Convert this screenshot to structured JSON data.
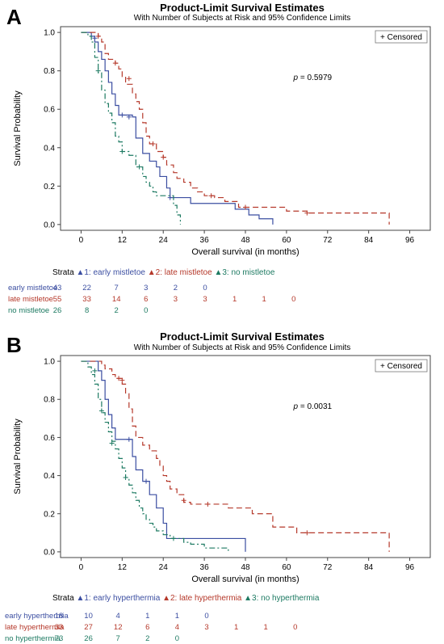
{
  "colors": {
    "series1": "#3b4ea1",
    "series2": "#b5382a",
    "series3": "#1d7a62"
  },
  "chart_data": [
    {
      "panel_label": "A",
      "type": "line",
      "title": "Product-Limit Survival Estimates",
      "subtitle": "With Number of Subjects at Risk and 95% Confidence Limits",
      "xlabel": "Overall survival (in months)",
      "ylabel": "Survival Probability",
      "xlim": [
        -6,
        102
      ],
      "ylim": [
        -0.03,
        1.03
      ],
      "xticks": [
        "0",
        "12",
        "24",
        "36",
        "48",
        "60",
        "72",
        "84",
        "96"
      ],
      "yticks": [
        "0.0",
        "0.2",
        "0.4",
        "0.6",
        "0.8",
        "1.0"
      ],
      "legend_censored": "+ Censored",
      "annotation_p_label": "p",
      "annotation_p_value": "= 0.5979",
      "strata_label": "Strata",
      "legend": [
        "1: early mistletoe",
        "2: late mistletoe",
        "3: no mistletoe"
      ],
      "series": [
        {
          "name": "early mistletoe",
          "steps": [
            [
              0,
              1.0
            ],
            [
              3,
              0.98
            ],
            [
              4,
              0.95
            ],
            [
              5,
              0.9
            ],
            [
              6,
              0.86
            ],
            [
              7,
              0.8
            ],
            [
              8,
              0.74
            ],
            [
              9,
              0.68
            ],
            [
              10,
              0.62
            ],
            [
              11,
              0.57
            ],
            [
              15,
              0.56
            ],
            [
              16,
              0.45
            ],
            [
              18,
              0.37
            ],
            [
              20,
              0.33
            ],
            [
              22,
              0.3
            ],
            [
              23,
              0.25
            ],
            [
              25,
              0.19
            ],
            [
              26,
              0.14
            ],
            [
              32,
              0.11
            ],
            [
              45,
              0.08
            ],
            [
              49,
              0.05
            ],
            [
              52,
              0.03
            ],
            [
              56,
              0.0
            ]
          ],
          "censored": [
            [
              4,
              0.97
            ],
            [
              12,
              0.57
            ],
            [
              14,
              0.56
            ],
            [
              26,
              0.14
            ]
          ],
          "at_risk": [
            "43",
            "22",
            "7",
            "3",
            "2",
            "0"
          ]
        },
        {
          "name": "late mistletoe",
          "steps": [
            [
              0,
              1.0
            ],
            [
              5,
              0.98
            ],
            [
              6,
              0.95
            ],
            [
              7,
              0.89
            ],
            [
              8,
              0.86
            ],
            [
              10,
              0.84
            ],
            [
              11,
              0.81
            ],
            [
              12,
              0.77
            ],
            [
              13,
              0.73
            ],
            [
              15,
              0.68
            ],
            [
              16,
              0.64
            ],
            [
              17,
              0.6
            ],
            [
              18,
              0.53
            ],
            [
              19,
              0.46
            ],
            [
              20,
              0.42
            ],
            [
              22,
              0.38
            ],
            [
              24,
              0.35
            ],
            [
              25,
              0.31
            ],
            [
              27,
              0.27
            ],
            [
              28,
              0.24
            ],
            [
              30,
              0.22
            ],
            [
              32,
              0.19
            ],
            [
              34,
              0.17
            ],
            [
              36,
              0.15
            ],
            [
              39,
              0.14
            ],
            [
              42,
              0.12
            ],
            [
              46,
              0.09
            ],
            [
              60,
              0.07
            ],
            [
              66,
              0.06
            ],
            [
              90,
              0.0
            ]
          ],
          "censored": [
            [
              5,
              0.98
            ],
            [
              10,
              0.84
            ],
            [
              14,
              0.76
            ],
            [
              21,
              0.42
            ],
            [
              24,
              0.35
            ],
            [
              38,
              0.15
            ],
            [
              48,
              0.09
            ],
            [
              66,
              0.06
            ]
          ],
          "at_risk": [
            "55",
            "33",
            "14",
            "6",
            "3",
            "3",
            "1",
            "1",
            "0"
          ]
        },
        {
          "name": "no mistletoe",
          "steps": [
            [
              0,
              1.0
            ],
            [
              2,
              0.98
            ],
            [
              3,
              0.95
            ],
            [
              4,
              0.87
            ],
            [
              5,
              0.79
            ],
            [
              6,
              0.7
            ],
            [
              7,
              0.63
            ],
            [
              8,
              0.58
            ],
            [
              9,
              0.53
            ],
            [
              10,
              0.46
            ],
            [
              11,
              0.43
            ],
            [
              12,
              0.38
            ],
            [
              14,
              0.36
            ],
            [
              16,
              0.3
            ],
            [
              18,
              0.25
            ],
            [
              19,
              0.22
            ],
            [
              20,
              0.2
            ],
            [
              21,
              0.17
            ],
            [
              22,
              0.15
            ],
            [
              27,
              0.1
            ],
            [
              28,
              0.05
            ],
            [
              29,
              0.0
            ]
          ],
          "censored": [
            [
              5,
              0.8
            ],
            [
              12,
              0.38
            ],
            [
              17,
              0.3
            ]
          ],
          "at_risk": [
            "26",
            "8",
            "2",
            "0"
          ]
        }
      ]
    },
    {
      "panel_label": "B",
      "type": "line",
      "title": "Product-Limit Survival Estimates",
      "subtitle": "With Number of Subjects at Risk and 95% Confidence Limits",
      "xlabel": "Overall survival (in months)",
      "ylabel": "Survival Probability",
      "xlim": [
        -6,
        102
      ],
      "ylim": [
        -0.03,
        1.03
      ],
      "xticks": [
        "0",
        "12",
        "24",
        "36",
        "48",
        "60",
        "72",
        "84",
        "96"
      ],
      "yticks": [
        "0.0",
        "0.2",
        "0.4",
        "0.6",
        "0.8",
        "1.0"
      ],
      "legend_censored": "+ Censored",
      "annotation_p_label": "p",
      "annotation_p_value": "= 0.0031",
      "strata_label": "Strata",
      "legend": [
        "1: early hyperthermia",
        "2: late hyperthermia",
        "3: no hyperthermia"
      ],
      "series": [
        {
          "name": "early hyperthermia",
          "steps": [
            [
              0,
              1.0
            ],
            [
              5,
              0.95
            ],
            [
              6,
              0.9
            ],
            [
              7,
              0.8
            ],
            [
              8,
              0.72
            ],
            [
              9,
              0.65
            ],
            [
              10,
              0.59
            ],
            [
              15,
              0.5
            ],
            [
              16,
              0.43
            ],
            [
              18,
              0.37
            ],
            [
              20,
              0.3
            ],
            [
              22,
              0.23
            ],
            [
              24,
              0.15
            ],
            [
              25,
              0.07
            ],
            [
              48,
              0.0
            ]
          ],
          "censored": [
            [
              14,
              0.59
            ],
            [
              19,
              0.37
            ]
          ],
          "at_risk": [
            "18",
            "10",
            "4",
            "1",
            "1",
            "0"
          ]
        },
        {
          "name": "late hyperthermia",
          "steps": [
            [
              0,
              1.0
            ],
            [
              6,
              0.98
            ],
            [
              7,
              0.96
            ],
            [
              9,
              0.93
            ],
            [
              10,
              0.91
            ],
            [
              12,
              0.88
            ],
            [
              13,
              0.83
            ],
            [
              14,
              0.75
            ],
            [
              15,
              0.66
            ],
            [
              16,
              0.6
            ],
            [
              18,
              0.56
            ],
            [
              20,
              0.53
            ],
            [
              22,
              0.49
            ],
            [
              23,
              0.45
            ],
            [
              24,
              0.4
            ],
            [
              25,
              0.37
            ],
            [
              26,
              0.33
            ],
            [
              28,
              0.3
            ],
            [
              30,
              0.26
            ],
            [
              32,
              0.25
            ],
            [
              36,
              0.25
            ],
            [
              43,
              0.23
            ],
            [
              50,
              0.2
            ],
            [
              56,
              0.13
            ],
            [
              63,
              0.1
            ],
            [
              90,
              0.0
            ]
          ],
          "censored": [
            [
              11,
              0.91
            ],
            [
              12,
              0.9
            ],
            [
              30,
              0.27
            ],
            [
              37,
              0.25
            ],
            [
              66,
              0.1
            ]
          ],
          "at_risk": [
            "33",
            "27",
            "12",
            "6",
            "4",
            "3",
            "1",
            "1",
            "0"
          ]
        },
        {
          "name": "no hyperthermia",
          "steps": [
            [
              0,
              1.0
            ],
            [
              2,
              0.97
            ],
            [
              3,
              0.93
            ],
            [
              4,
              0.88
            ],
            [
              5,
              0.8
            ],
            [
              6,
              0.73
            ],
            [
              7,
              0.68
            ],
            [
              8,
              0.63
            ],
            [
              9,
              0.58
            ],
            [
              10,
              0.54
            ],
            [
              11,
              0.49
            ],
            [
              12,
              0.44
            ],
            [
              13,
              0.39
            ],
            [
              14,
              0.35
            ],
            [
              15,
              0.31
            ],
            [
              16,
              0.27
            ],
            [
              17,
              0.23
            ],
            [
              18,
              0.2
            ],
            [
              19,
              0.17
            ],
            [
              20,
              0.15
            ],
            [
              21,
              0.13
            ],
            [
              22,
              0.11
            ],
            [
              24,
              0.09
            ],
            [
              26,
              0.07
            ],
            [
              30,
              0.05
            ],
            [
              32,
              0.04
            ],
            [
              36,
              0.02
            ],
            [
              43,
              0.0
            ]
          ],
          "censored": [
            [
              4,
              0.95
            ],
            [
              6,
              0.74
            ],
            [
              9,
              0.57
            ],
            [
              13,
              0.39
            ],
            [
              27,
              0.07
            ]
          ],
          "at_risk": [
            "73",
            "26",
            "7",
            "2",
            "0"
          ]
        }
      ]
    }
  ]
}
